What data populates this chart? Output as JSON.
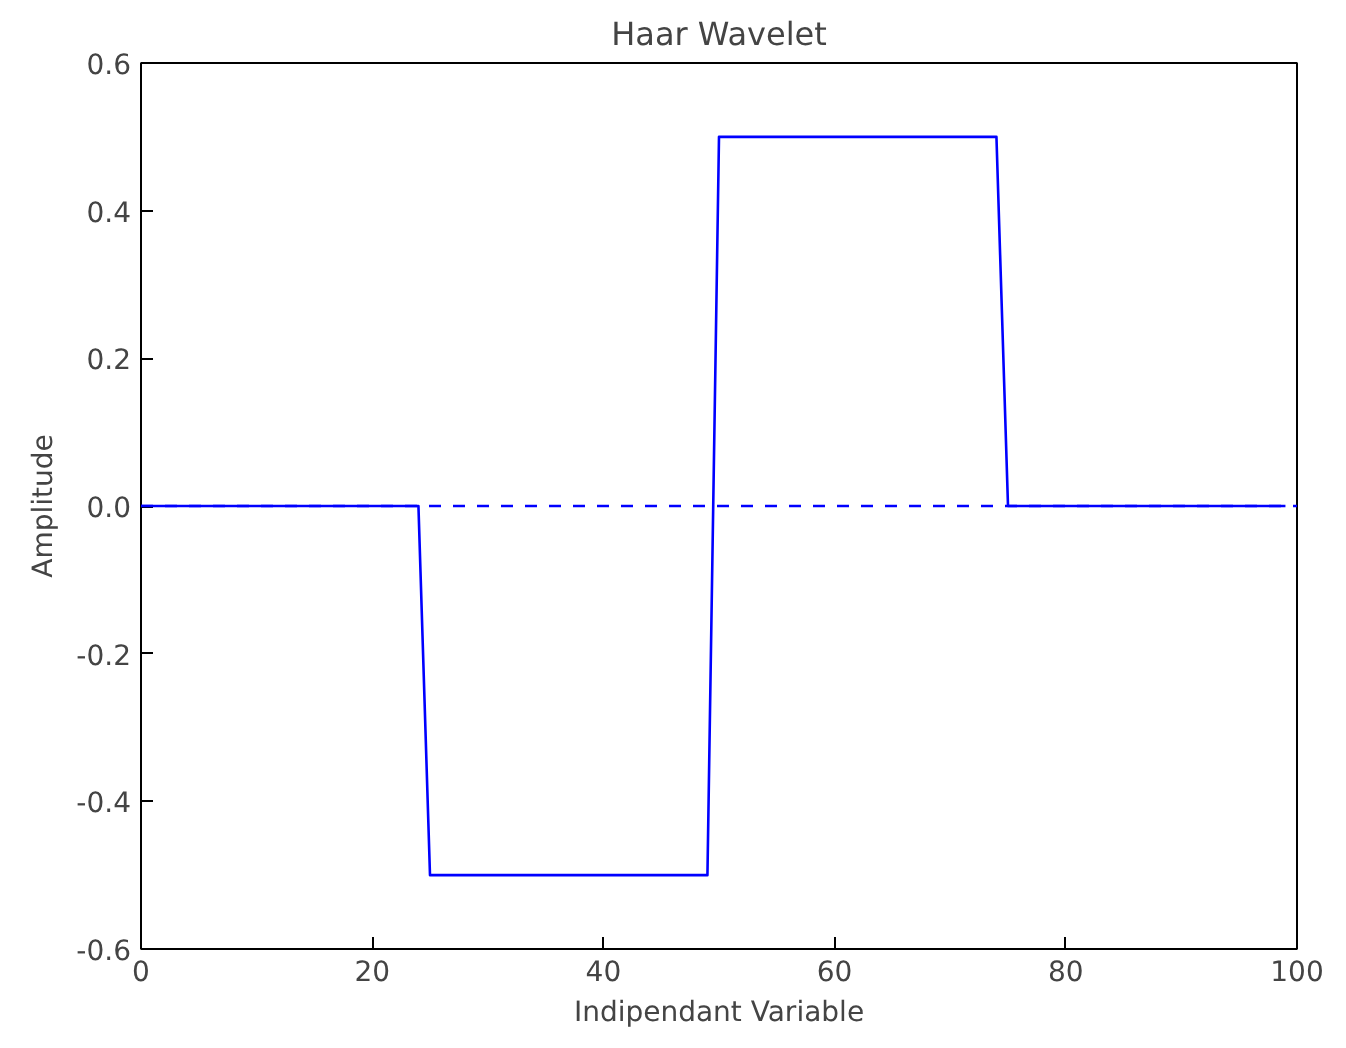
{
  "chart_data": {
    "type": "line",
    "title": "Haar Wavelet",
    "xlabel": "Indipendant Variable",
    "ylabel": "Amplitude",
    "x": [
      0,
      24,
      25,
      49,
      50,
      74,
      75,
      99
    ],
    "series": [
      {
        "color": "#0000ff",
        "values": [
          0,
          0,
          -0.5,
          -0.5,
          0.5,
          0.5,
          0,
          0
        ]
      }
    ],
    "xlim": [
      0,
      100
    ],
    "xticks": [
      0,
      20,
      40,
      60,
      80,
      100
    ],
    "ylim": [
      -0.6,
      0.6
    ],
    "yticks": [
      -0.6,
      -0.4,
      -0.2,
      {
        "value": 0,
        "label": "0.0"
      },
      0.2,
      0.4,
      0.6
    ],
    "ref_lines": [
      {
        "axis": "y",
        "value": 0,
        "color": "#0000ff",
        "line_style": "dashed"
      }
    ],
    "grid": false,
    "marker": "none",
    "line_style": "solid"
  }
}
